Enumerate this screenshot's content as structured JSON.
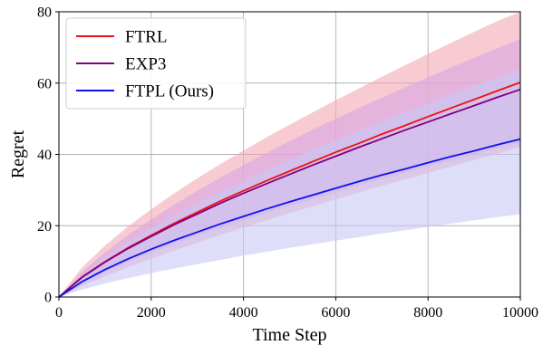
{
  "chart_data": {
    "type": "line",
    "xlabel": "Time Step",
    "ylabel": "Regret",
    "xlim": [
      0,
      10000
    ],
    "ylim": [
      0,
      80
    ],
    "xticks": [
      0,
      2000,
      4000,
      6000,
      8000,
      10000
    ],
    "yticks": [
      0,
      20,
      40,
      60,
      80
    ],
    "xtick_labels": [
      "0",
      "2000",
      "4000",
      "6000",
      "8000",
      "10000"
    ],
    "ytick_labels": [
      "0",
      "20",
      "40",
      "60",
      "80"
    ],
    "grid": true,
    "legend_position": "top-left",
    "x": [
      0,
      500,
      1000,
      1500,
      2000,
      2500,
      3000,
      3500,
      4000,
      4500,
      5000,
      5500,
      6000,
      6500,
      7000,
      7500,
      8000,
      8500,
      9000,
      9500,
      10000
    ],
    "series": [
      {
        "name": "FTRL",
        "color": "#ee1111",
        "band_color": "#f4a8b4",
        "values": [
          0,
          5.6,
          9.9,
          13.8,
          17.3,
          20.7,
          23.8,
          26.9,
          29.8,
          32.6,
          35.3,
          38.0,
          40.6,
          43.1,
          45.7,
          48.1,
          50.6,
          53.0,
          55.4,
          57.8,
          60.2
        ],
        "lower": [
          0,
          3.1,
          5.8,
          8.3,
          10.7,
          13.0,
          15.2,
          17.4,
          19.5,
          21.5,
          23.5,
          25.5,
          27.4,
          29.3,
          31.2,
          33.0,
          34.8,
          36.6,
          38.4,
          40.2,
          42.0
        ],
        "upper": [
          0,
          8.3,
          14.4,
          19.8,
          24.6,
          29.1,
          33.3,
          37.3,
          41.1,
          44.8,
          48.3,
          51.8,
          55.2,
          58.5,
          61.8,
          65.0,
          68.2,
          71.3,
          74.4,
          77.4,
          80.0
        ]
      },
      {
        "name": "EXP3",
        "color": "#800080",
        "band_color": "#d9a5e4",
        "values": [
          0,
          5.5,
          9.8,
          13.6,
          17.0,
          20.3,
          23.3,
          26.3,
          29.1,
          31.8,
          34.4,
          37.0,
          39.5,
          42.0,
          44.4,
          46.8,
          49.1,
          51.4,
          53.7,
          56.0,
          58.2
        ],
        "lower": [
          0,
          3.9,
          7.0,
          9.8,
          12.4,
          14.8,
          17.1,
          19.3,
          21.4,
          23.5,
          25.5,
          27.4,
          29.3,
          31.2,
          33.0,
          34.8,
          36.5,
          38.2,
          39.9,
          41.6,
          43.2
        ],
        "upper": [
          0,
          7.0,
          12.5,
          17.4,
          21.8,
          25.9,
          29.8,
          33.5,
          37.0,
          40.4,
          43.7,
          46.9,
          50.0,
          53.0,
          55.9,
          58.8,
          61.6,
          64.4,
          67.1,
          69.8,
          72.4
        ]
      },
      {
        "name": "FTPL (Ours)",
        "color": "#1010ee",
        "band_color": "#c8c8f7",
        "values": [
          0,
          4.3,
          7.7,
          10.7,
          13.4,
          15.9,
          18.2,
          20.5,
          22.6,
          24.7,
          26.7,
          28.6,
          30.5,
          32.4,
          34.2,
          35.9,
          37.7,
          39.4,
          41.0,
          42.7,
          44.3
        ],
        "lower": [
          0,
          2.1,
          3.8,
          5.3,
          6.7,
          8.0,
          9.2,
          10.4,
          11.6,
          12.7,
          13.8,
          14.8,
          15.8,
          16.8,
          17.8,
          18.7,
          19.7,
          20.6,
          21.5,
          22.4,
          23.2
        ],
        "upper": [
          0,
          6.3,
          11.2,
          15.5,
          19.3,
          22.9,
          26.3,
          29.5,
          32.6,
          35.6,
          38.5,
          41.3,
          44.0,
          46.7,
          49.3,
          51.8,
          54.3,
          56.8,
          59.2,
          61.6,
          64.0
        ]
      }
    ]
  }
}
